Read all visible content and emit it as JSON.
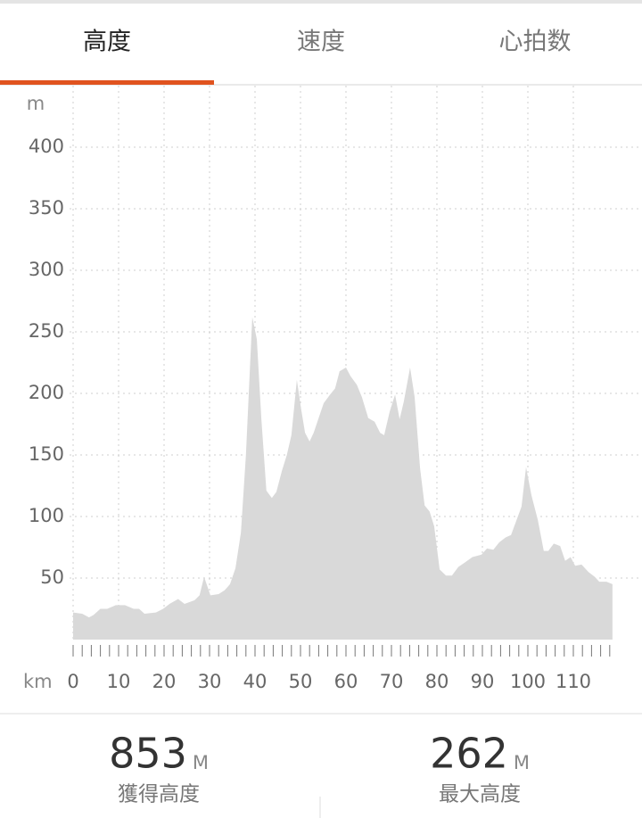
{
  "tabs": [
    {
      "label": "高度",
      "active": true
    },
    {
      "label": "速度",
      "active": false
    },
    {
      "label": "心拍数",
      "active": false
    }
  ],
  "chart_data": {
    "type": "area",
    "y_unit": "m",
    "x_unit": "km",
    "x": [
      0,
      2,
      3.5,
      4.5,
      6,
      7.5,
      9.4,
      11.4,
      13.3,
      14.5,
      15.7,
      18.2,
      19.8,
      21.2,
      23.1,
      24.5,
      26.7,
      27.8,
      28.8,
      30.2,
      32,
      33.3,
      34.5,
      35.7,
      36.9,
      38,
      39.4,
      40.4,
      41.4,
      42.5,
      43.7,
      44.7,
      45.9,
      47,
      48,
      49.2,
      50.2,
      51,
      52,
      52.9,
      53.9,
      55.1,
      56.5,
      57.6,
      58.6,
      60,
      61,
      62.4,
      63.5,
      64.9,
      66.3,
      67.5,
      68.4,
      69.6,
      70.8,
      71.8,
      72.7,
      74.1,
      75.1,
      76.3,
      77.3,
      78.4,
      79.4,
      80.6,
      82,
      83.3,
      84.7,
      86.3,
      87.8,
      89.8,
      91,
      92.4,
      93.7,
      95.1,
      96.3,
      97.6,
      98.6,
      99.6,
      100.8,
      102.2,
      103.5,
      104.5,
      105.7,
      107.1,
      108.2,
      109.4,
      110.4,
      111.8,
      113.3,
      114.7,
      115.7,
      117.3,
      118.6
    ],
    "series": [
      {
        "name": "高度",
        "color": "#d9d9d9",
        "values": [
          22,
          21,
          18,
          20,
          25,
          25,
          28,
          28,
          25,
          25,
          21,
          22,
          25,
          29,
          33,
          29,
          32,
          36,
          51,
          36,
          37,
          40,
          45,
          58,
          87,
          150,
          262,
          244,
          179,
          121,
          115,
          120,
          137,
          150,
          166,
          211,
          186,
          168,
          161,
          168,
          179,
          192,
          199,
          204,
          218,
          221,
          214,
          207,
          197,
          180,
          177,
          168,
          166,
          185,
          199,
          179,
          193,
          221,
          197,
          139,
          109,
          104,
          92,
          57,
          52,
          52,
          59,
          63,
          67,
          69,
          74,
          73,
          79,
          83,
          85,
          98,
          108,
          140,
          117,
          97,
          72,
          72,
          78,
          76,
          64,
          67,
          60,
          61,
          55,
          51,
          47,
          47,
          45
        ]
      }
    ],
    "xlim": [
      0,
      125
    ],
    "ylim": [
      0,
      450
    ],
    "xticks": [
      0,
      10,
      20,
      30,
      40,
      50,
      60,
      70,
      80,
      90,
      100,
      110
    ],
    "xminorticks": [
      0,
      2,
      4,
      6,
      8,
      10,
      12,
      14,
      16,
      18,
      20,
      22,
      24,
      26,
      28,
      30,
      32,
      34,
      36,
      38,
      40,
      42,
      44,
      46,
      48,
      50,
      52,
      54,
      56,
      58,
      60,
      62,
      64,
      66,
      68,
      70,
      72,
      74,
      76,
      78,
      80,
      82,
      84,
      86,
      88,
      90,
      92,
      94,
      96,
      98,
      100,
      102,
      104,
      106,
      108,
      110,
      112,
      114,
      116,
      118
    ],
    "yticks": [
      50,
      100,
      150,
      200,
      250,
      300,
      350,
      400
    ],
    "grid": true
  },
  "stats": [
    {
      "value": "853",
      "unit": "M",
      "label": "獲得高度"
    },
    {
      "value": "262",
      "unit": "M",
      "label": "最大高度"
    }
  ]
}
